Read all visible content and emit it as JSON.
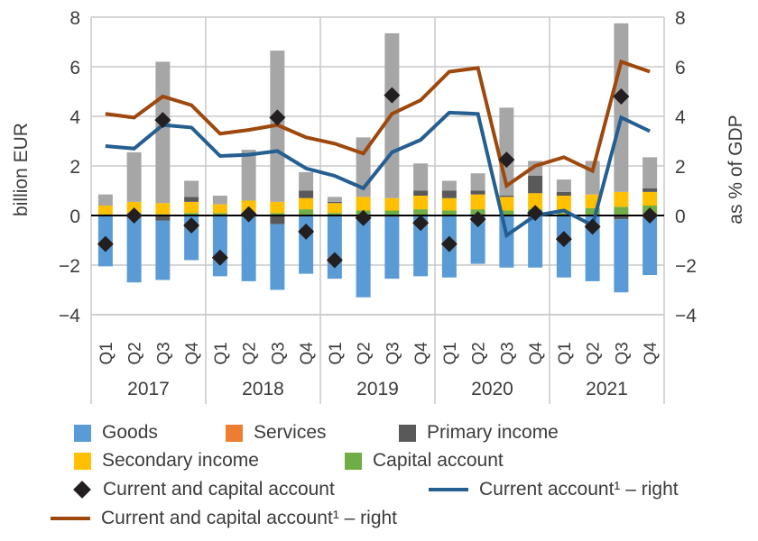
{
  "chart_data": {
    "type": "bar",
    "subtype": "stacked bar with line and marker overlays",
    "title": "",
    "ylabel_left": "billion  EUR",
    "ylabel_right": "as % of GDP",
    "ylim": [
      -4,
      8
    ],
    "ylim_right": [
      -4,
      8
    ],
    "yticks": [
      "−4",
      "−2",
      "0",
      "2",
      "4",
      "6",
      "8"
    ],
    "ytick_values": [
      -4,
      -2,
      0,
      2,
      4,
      6,
      8
    ],
    "grid": true,
    "years": [
      "2017",
      "2018",
      "2019",
      "2020",
      "2021"
    ],
    "categories": [
      "Q1",
      "Q2",
      "Q3",
      "Q4",
      "Q1",
      "Q2",
      "Q3",
      "Q4",
      "Q1",
      "Q2",
      "Q3",
      "Q4",
      "Q1",
      "Q2",
      "Q3",
      "Q4",
      "Q1",
      "Q2",
      "Q3",
      "Q4"
    ],
    "series": [
      {
        "name": "Goods",
        "kind": "bar",
        "color": "#5b9bd5",
        "values": [
          -2.05,
          -2.6,
          -2.4,
          -1.8,
          -2.45,
          -2.6,
          -2.65,
          -2.35,
          -2.55,
          -3.25,
          -2.5,
          -2.45,
          -2.5,
          -1.95,
          -2.1,
          -2.1,
          -2.5,
          -2.65,
          -2.95,
          -2.4
        ]
      },
      {
        "name": "Services",
        "kind": "bar",
        "color": "#a6a6a6",
        "legend_color": "#ed7d31",
        "values": [
          0.45,
          2.0,
          5.7,
          0.65,
          0.35,
          2.05,
          6.1,
          0.75,
          0.2,
          2.4,
          6.65,
          1.1,
          0.4,
          0.7,
          3.55,
          0.6,
          0.5,
          1.35,
          6.8,
          1.25
        ]
      },
      {
        "name": "Primary income",
        "kind": "bar",
        "color": "#595959",
        "values": [
          0.0,
          -0.1,
          -0.2,
          0.2,
          0.0,
          -0.05,
          -0.35,
          0.3,
          0.05,
          -0.05,
          -0.05,
          0.2,
          0.3,
          0.15,
          0.05,
          0.7,
          0.15,
          0.0,
          -0.15,
          0.15
        ]
      },
      {
        "name": "Secondary income",
        "kind": "bar",
        "color": "#ffc000",
        "values": [
          0.35,
          0.45,
          0.45,
          0.45,
          0.35,
          0.5,
          0.45,
          0.45,
          0.4,
          0.55,
          0.5,
          0.55,
          0.5,
          0.6,
          0.55,
          0.65,
          0.7,
          0.55,
          0.6,
          0.55
        ]
      },
      {
        "name": "Capital account",
        "kind": "bar",
        "color": "#70ad47",
        "values": [
          0.05,
          0.1,
          0.05,
          0.1,
          0.1,
          0.1,
          0.1,
          0.25,
          0.1,
          0.2,
          0.2,
          0.25,
          0.2,
          0.25,
          0.2,
          0.25,
          0.1,
          0.3,
          0.35,
          0.4
        ]
      },
      {
        "name": "Current and capital account",
        "kind": "marker",
        "color": "#231f20",
        "values": [
          -1.15,
          0.0,
          3.85,
          -0.4,
          -1.7,
          0.05,
          3.95,
          -0.65,
          -1.8,
          -0.1,
          4.85,
          -0.3,
          -1.15,
          -0.15,
          2.25,
          0.1,
          -0.95,
          -0.45,
          4.8,
          0.0
        ]
      },
      {
        "name": "Current account¹ – right",
        "kind": "line",
        "axis": "right",
        "color": "#255e91",
        "values": [
          2.8,
          2.7,
          3.65,
          3.55,
          2.4,
          2.45,
          2.6,
          1.9,
          1.6,
          1.1,
          2.55,
          3.05,
          4.15,
          4.1,
          -0.8,
          0.0,
          0.2,
          -0.4,
          3.95,
          3.4
        ]
      },
      {
        "name": "Current and capital account¹ – right",
        "kind": "line",
        "axis": "right",
        "color": "#9e480e",
        "values": [
          4.1,
          3.95,
          4.8,
          4.45,
          3.3,
          3.45,
          3.65,
          3.15,
          2.9,
          2.5,
          4.1,
          4.65,
          5.8,
          5.95,
          1.2,
          2.0,
          2.35,
          1.8,
          6.2,
          5.8
        ]
      }
    ],
    "legend_position": "bottom"
  },
  "legend": {
    "goods": "Goods",
    "services": "Services",
    "primary": "Primary income",
    "secondary": "Secondary income",
    "capital": "Capital account",
    "cca_marker": "Current and capital account",
    "ca_line": "Current account¹ – right",
    "cca_line": "Current and capital account¹ – right"
  }
}
